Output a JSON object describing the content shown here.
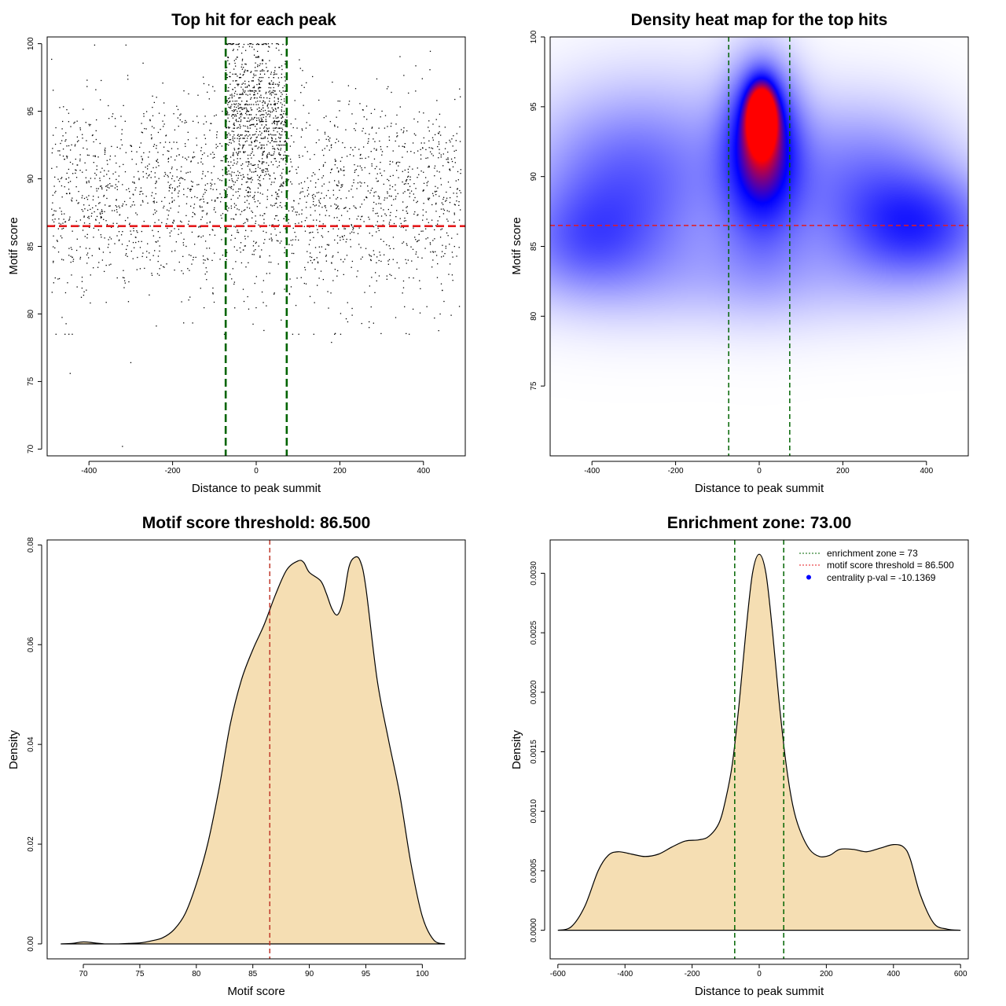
{
  "colors": {
    "zone_line": "#006400",
    "threshold_line": "#e41a1c",
    "threshold_line_dark": "#c0392b",
    "density_fill": "#f5deb3",
    "points": "#000000",
    "heat_low": "#ffffff",
    "heat_mid": "#0000ff",
    "heat_high": "#ff0000"
  },
  "chart_data": [
    {
      "id": "scatter",
      "type": "scatter",
      "title": "Top hit for each peak",
      "xlabel": "Distance to peak summit",
      "ylabel": "Motif score",
      "xlim": [
        -500,
        500
      ],
      "ylim": [
        69.5,
        100.5
      ],
      "xticks": [
        -400,
        -200,
        0,
        200,
        400
      ],
      "xtick_labels": [
        "-400",
        "-200",
        "0",
        "200",
        "400"
      ],
      "yticks": [
        70,
        75,
        80,
        85,
        90,
        95,
        100
      ],
      "ytick_labels": [
        "70",
        "75",
        "80",
        "85",
        "90",
        "95",
        "100"
      ],
      "vlines": [
        -73,
        73
      ],
      "hline": 86.5,
      "n_background_points": 2200,
      "n_central_points": 900,
      "central_range": [
        -73,
        73
      ],
      "background_score_mean": 88.5,
      "central_score_mean": 94.5,
      "outlier_points": [
        {
          "x": -320,
          "y": 70.2
        },
        {
          "x": -445,
          "y": 75.6
        },
        {
          "x": -300,
          "y": 76.4
        },
        {
          "x": -440,
          "y": 78.5
        },
        {
          "x": 180,
          "y": 77.9
        },
        {
          "x": 270,
          "y": 79.0
        }
      ]
    },
    {
      "id": "heatmap",
      "type": "heatmap",
      "title": "Density heat map for the top hits",
      "xlabel": "Distance to peak summit",
      "ylabel": "Motif score",
      "xlim": [
        -500,
        500
      ],
      "ylim": [
        70,
        100
      ],
      "xticks": [
        -400,
        -200,
        0,
        200,
        400
      ],
      "xtick_labels": [
        "-400",
        "-200",
        "0",
        "200",
        "400"
      ],
      "yticks": [
        75,
        80,
        85,
        90,
        95,
        100
      ],
      "ytick_labels": [
        "75",
        "80",
        "85",
        "90",
        "95",
        "100"
      ],
      "vlines": [
        -73,
        73
      ],
      "hline": 86.5,
      "hot_spot": {
        "x": 5,
        "y": 94.5
      },
      "density_blobs": [
        {
          "x": 5,
          "y": 94.5,
          "sx": 25,
          "sy": 1.6,
          "w": 1.0
        },
        {
          "x": 5,
          "y": 93.0,
          "sx": 55,
          "sy": 3.4,
          "w": 0.62
        },
        {
          "x": 5,
          "y": 89.0,
          "sx": 75,
          "sy": 4.0,
          "w": 0.28
        },
        {
          "x": -330,
          "y": 89.0,
          "sx": 150,
          "sy": 4.0,
          "w": 0.3
        },
        {
          "x": -420,
          "y": 85.5,
          "sx": 110,
          "sy": 2.5,
          "w": 0.22
        },
        {
          "x": 380,
          "y": 86.5,
          "sx": 120,
          "sy": 2.5,
          "w": 0.42
        },
        {
          "x": 250,
          "y": 90.0,
          "sx": 150,
          "sy": 3.5,
          "w": 0.28
        },
        {
          "x": 0,
          "y": 83.0,
          "sx": 400,
          "sy": 2.6,
          "w": 0.13
        },
        {
          "x": -200,
          "y": 92.0,
          "sx": 200,
          "sy": 4.0,
          "w": 0.12
        }
      ]
    },
    {
      "id": "score_density",
      "type": "area",
      "title": "Motif score threshold: 86.500",
      "xlabel": "Motif score",
      "ylabel": "Density",
      "xlim": [
        66.8,
        103.8
      ],
      "ylim": [
        -0.003,
        0.081
      ],
      "xticks": [
        70,
        75,
        80,
        85,
        90,
        95,
        100
      ],
      "xtick_labels": [
        "70",
        "75",
        "80",
        "85",
        "90",
        "95",
        "100"
      ],
      "yticks": [
        0.0,
        0.02,
        0.04,
        0.06,
        0.08
      ],
      "ytick_labels": [
        "0.00",
        "0.02",
        "0.04",
        "0.06",
        "0.08"
      ],
      "vline": 86.5,
      "x": [
        68,
        69,
        70,
        71,
        72,
        73,
        74,
        75,
        76,
        77,
        78,
        79,
        80,
        81,
        82,
        83,
        84,
        85,
        86,
        87,
        88,
        89,
        89.5,
        90,
        91,
        91.5,
        92,
        92.5,
        93,
        93.5,
        94,
        94.5,
        95,
        96,
        97,
        98,
        99,
        100,
        101,
        102
      ],
      "y": [
        0.0,
        0.0001,
        0.0004,
        0.0002,
        0.0,
        0.0,
        0.0001,
        0.0002,
        0.0006,
        0.0012,
        0.0028,
        0.006,
        0.012,
        0.02,
        0.031,
        0.044,
        0.053,
        0.059,
        0.064,
        0.07,
        0.075,
        0.0768,
        0.0765,
        0.0745,
        0.0728,
        0.0703,
        0.0672,
        0.066,
        0.069,
        0.0755,
        0.0775,
        0.0768,
        0.0715,
        0.053,
        0.041,
        0.03,
        0.016,
        0.0055,
        0.0008,
        0.0
      ]
    },
    {
      "id": "distance_density",
      "type": "area",
      "title": "Enrichment zone: 73.00",
      "xlabel": "Distance to peak summit",
      "ylabel": "Density",
      "xlim": [
        -623,
        623
      ],
      "ylim": [
        -0.00024,
        0.00328
      ],
      "xticks": [
        -600,
        -400,
        -200,
        0,
        200,
        400,
        600
      ],
      "xtick_labels": [
        "-600",
        "-400",
        "-200",
        "0",
        "200",
        "400",
        "600"
      ],
      "yticks": [
        0.0,
        0.0005,
        0.001,
        0.0015,
        0.002,
        0.0025,
        0.003
      ],
      "ytick_labels": [
        "0.0000",
        "0.0005",
        "0.0010",
        "0.0015",
        "0.0020",
        "0.0025",
        "0.0030"
      ],
      "vlines": [
        -73,
        73
      ],
      "x": [
        -600,
        -560,
        -520,
        -480,
        -450,
        -420,
        -380,
        -340,
        -300,
        -260,
        -220,
        -180,
        -150,
        -120,
        -100,
        -80,
        -60,
        -40,
        -20,
        0,
        20,
        40,
        60,
        80,
        100,
        120,
        150,
        180,
        210,
        240,
        280,
        320,
        360,
        400,
        430,
        450,
        480,
        520,
        560,
        600
      ],
      "y": [
        0.0,
        3e-05,
        0.0002,
        0.0005,
        0.00063,
        0.00066,
        0.00064,
        0.00062,
        0.00064,
        0.0007,
        0.00075,
        0.00076,
        0.00079,
        0.0009,
        0.0011,
        0.0014,
        0.0019,
        0.0025,
        0.003,
        0.00316,
        0.003,
        0.0025,
        0.0019,
        0.0014,
        0.00105,
        0.00085,
        0.00068,
        0.00062,
        0.00063,
        0.00068,
        0.00068,
        0.00066,
        0.00069,
        0.00072,
        0.0007,
        0.0006,
        0.0003,
        6e-05,
        1e-05,
        0.0
      ],
      "legend": {
        "position": "top-right",
        "entries": [
          {
            "label": "enrichment zone = 73",
            "style": "dotted-line",
            "color": "#006400"
          },
          {
            "label": "motif score threshold = 86.500",
            "style": "dotted-line",
            "color": "#e41a1c"
          },
          {
            "label": "centrality p-val = -10.1369",
            "style": "point",
            "color": "#0000ff"
          }
        ]
      }
    }
  ]
}
